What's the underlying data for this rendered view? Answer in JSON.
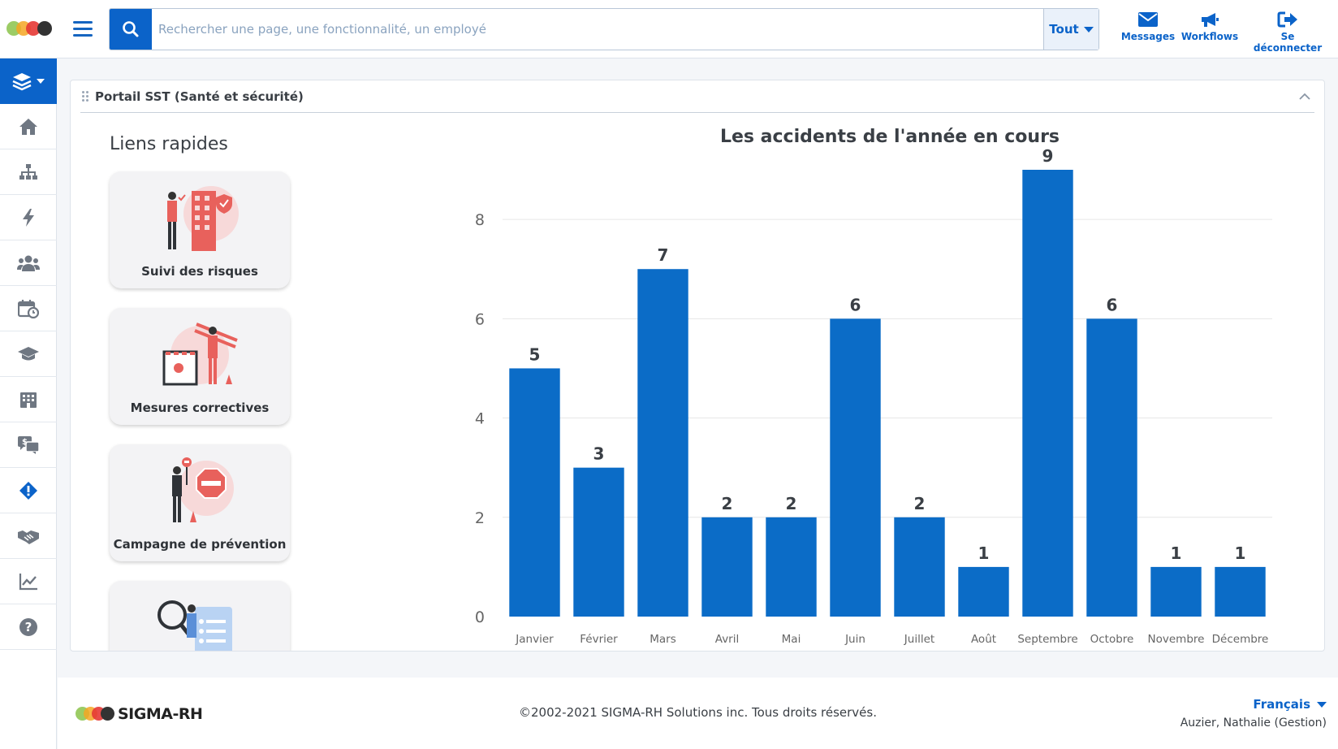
{
  "header": {
    "search": {
      "placeholder": "Rechercher une page, une fonctionnalité, un employé"
    },
    "scope_label": "Tout",
    "actions": [
      {
        "label": "Messages",
        "icon": "envelope-icon"
      },
      {
        "label": "Workflows",
        "icon": "megaphone-icon"
      },
      {
        "label": "Se déconnecter",
        "icon": "sign-out-icon"
      }
    ]
  },
  "sidebar": {
    "items": [
      {
        "icon": "home-icon"
      },
      {
        "icon": "org-chart-icon"
      },
      {
        "icon": "bolt-icon"
      },
      {
        "icon": "users-icon"
      },
      {
        "icon": "calendar-clock-icon"
      },
      {
        "icon": "graduation-cap-icon"
      },
      {
        "icon": "building-icon"
      },
      {
        "icon": "money-chat-icon"
      },
      {
        "icon": "warning-diamond-icon"
      },
      {
        "icon": "handshake-icon"
      },
      {
        "icon": "chart-line-icon"
      },
      {
        "icon": "help-icon"
      }
    ]
  },
  "widget": {
    "title": "Portail SST (Santé et sécurité)",
    "quick_links": {
      "title": "Liens rapides",
      "items": [
        {
          "label": "Suivi des risques"
        },
        {
          "label": "Mesures correctives"
        },
        {
          "label": "Campagne de prévention"
        },
        {
          "label": ""
        }
      ]
    }
  },
  "chart_data": {
    "type": "bar",
    "title": "Les accidents de l'année en cours",
    "categories": [
      "Janvier",
      "Février",
      "Mars",
      "Avril",
      "Mai",
      "Juin",
      "Juillet",
      "Août",
      "Septembre",
      "Octobre",
      "Novembre",
      "Décembre"
    ],
    "values": [
      5,
      3,
      7,
      2,
      2,
      6,
      2,
      1,
      9,
      6,
      1,
      1
    ],
    "yticks": [
      0,
      2,
      4,
      6,
      8
    ],
    "ylim": [
      0,
      9
    ],
    "grid": true,
    "bar_color": "#0b6cc7",
    "data_labels": true
  },
  "footer": {
    "brand": "SIGMA-RH",
    "copyright": "©2002-2021 SIGMA-RH Solutions inc. Tous droits réservés.",
    "language": "Français",
    "user": "Auzier, Nathalie (Gestion)"
  },
  "colors": {
    "accent": "#0b63c9",
    "logo": [
      "#8bc34a",
      "#f5a623",
      "#e53935",
      "#333333"
    ]
  }
}
